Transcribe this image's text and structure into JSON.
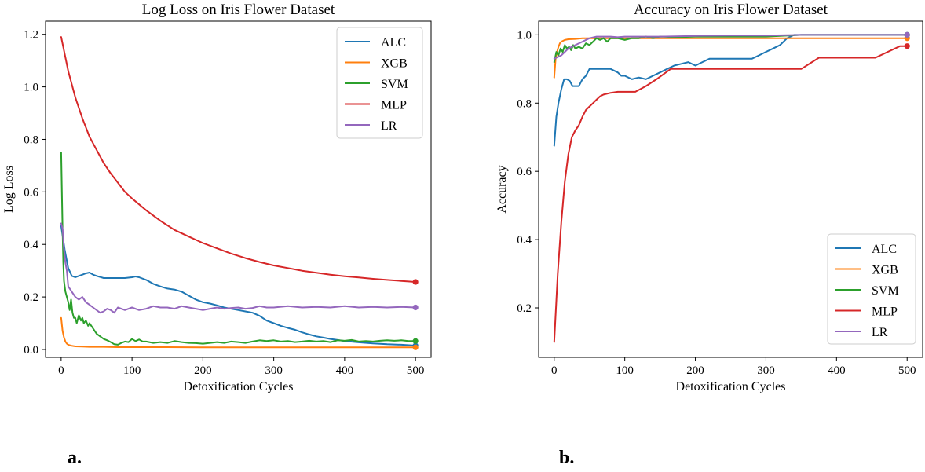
{
  "figure": {
    "panel_labels": [
      "a.",
      "b."
    ]
  },
  "chart_data": [
    {
      "type": "line",
      "title": "Log Loss on Iris Flower Dataset",
      "xlabel": "Detoxification Cycles",
      "ylabel": "Log Loss",
      "xlim": [
        -22,
        522
      ],
      "ylim": [
        -0.03,
        1.25
      ],
      "xticks": [
        0,
        100,
        200,
        300,
        400,
        500
      ],
      "xtick_labels": [
        "0",
        "100",
        "200",
        "300",
        "400",
        "500"
      ],
      "yticks": [
        0.0,
        0.2,
        0.4,
        0.6,
        0.8,
        1.0,
        1.2
      ],
      "ytick_labels": [
        "0.0",
        "0.2",
        "0.4",
        "0.6",
        "0.8",
        "1.0",
        "1.2"
      ],
      "grid": false,
      "legend_position": "top-right",
      "series": [
        {
          "name": "ALC",
          "color": "#1f77b4",
          "x": [
            0,
            5,
            10,
            15,
            20,
            25,
            30,
            35,
            40,
            45,
            50,
            60,
            70,
            80,
            90,
            100,
            105,
            110,
            120,
            130,
            140,
            150,
            160,
            170,
            180,
            190,
            200,
            210,
            220,
            230,
            240,
            250,
            260,
            270,
            280,
            290,
            300,
            310,
            320,
            330,
            340,
            350,
            360,
            370,
            380,
            390,
            400,
            420,
            440,
            460,
            480,
            500
          ],
          "y": [
            0.47,
            0.38,
            0.31,
            0.28,
            0.275,
            0.28,
            0.285,
            0.29,
            0.293,
            0.285,
            0.28,
            0.272,
            0.272,
            0.272,
            0.272,
            0.275,
            0.278,
            0.275,
            0.265,
            0.25,
            0.24,
            0.232,
            0.228,
            0.22,
            0.205,
            0.19,
            0.18,
            0.175,
            0.168,
            0.16,
            0.155,
            0.15,
            0.145,
            0.14,
            0.128,
            0.11,
            0.1,
            0.09,
            0.082,
            0.075,
            0.065,
            0.057,
            0.05,
            0.045,
            0.04,
            0.036,
            0.032,
            0.027,
            0.023,
            0.02,
            0.018,
            0.015
          ]
        },
        {
          "name": "XGB",
          "color": "#ff7f0e",
          "x": [
            0,
            2,
            4,
            6,
            8,
            10,
            15,
            20,
            30,
            40,
            60,
            80,
            100,
            150,
            200,
            300,
            400,
            500
          ],
          "y": [
            0.12,
            0.07,
            0.045,
            0.03,
            0.022,
            0.018,
            0.014,
            0.012,
            0.011,
            0.01,
            0.01,
            0.009,
            0.009,
            0.009,
            0.008,
            0.008,
            0.008,
            0.008
          ]
        },
        {
          "name": "SVM",
          "color": "#2ca02c",
          "x": [
            0,
            1,
            2,
            3,
            4,
            6,
            8,
            10,
            12,
            14,
            16,
            18,
            20,
            22,
            25,
            28,
            30,
            32,
            35,
            38,
            40,
            45,
            50,
            55,
            60,
            65,
            70,
            75,
            80,
            85,
            90,
            95,
            100,
            105,
            110,
            115,
            120,
            130,
            140,
            150,
            160,
            170,
            180,
            190,
            200,
            210,
            220,
            230,
            240,
            250,
            260,
            270,
            280,
            290,
            300,
            310,
            320,
            330,
            340,
            350,
            360,
            370,
            380,
            390,
            400,
            410,
            420,
            430,
            440,
            450,
            460,
            470,
            480,
            490,
            500
          ],
          "y": [
            0.75,
            0.6,
            0.45,
            0.33,
            0.26,
            0.22,
            0.2,
            0.18,
            0.15,
            0.19,
            0.14,
            0.12,
            0.12,
            0.1,
            0.13,
            0.11,
            0.12,
            0.1,
            0.11,
            0.09,
            0.1,
            0.08,
            0.06,
            0.05,
            0.04,
            0.035,
            0.028,
            0.02,
            0.018,
            0.025,
            0.03,
            0.028,
            0.04,
            0.032,
            0.038,
            0.03,
            0.03,
            0.025,
            0.028,
            0.025,
            0.032,
            0.028,
            0.025,
            0.024,
            0.022,
            0.025,
            0.028,
            0.025,
            0.03,
            0.028,
            0.025,
            0.03,
            0.035,
            0.032,
            0.035,
            0.03,
            0.032,
            0.028,
            0.03,
            0.033,
            0.03,
            0.032,
            0.028,
            0.035,
            0.033,
            0.036,
            0.03,
            0.032,
            0.03,
            0.033,
            0.035,
            0.033,
            0.035,
            0.032,
            0.032
          ]
        },
        {
          "name": "MLP",
          "color": "#d62728",
          "x": [
            0,
            10,
            20,
            30,
            40,
            50,
            60,
            70,
            80,
            90,
            100,
            120,
            140,
            160,
            180,
            200,
            220,
            240,
            260,
            280,
            300,
            320,
            340,
            360,
            380,
            400,
            420,
            440,
            460,
            480,
            500
          ],
          "y": [
            1.19,
            1.06,
            0.96,
            0.88,
            0.81,
            0.76,
            0.71,
            0.67,
            0.635,
            0.6,
            0.575,
            0.53,
            0.49,
            0.455,
            0.43,
            0.405,
            0.385,
            0.365,
            0.348,
            0.333,
            0.32,
            0.31,
            0.3,
            0.292,
            0.285,
            0.279,
            0.274,
            0.269,
            0.265,
            0.261,
            0.257
          ]
        },
        {
          "name": "LR",
          "color": "#9467bd",
          "x": [
            0,
            2,
            4,
            6,
            8,
            10,
            15,
            20,
            25,
            30,
            35,
            40,
            45,
            50,
            55,
            60,
            65,
            70,
            75,
            80,
            90,
            100,
            110,
            120,
            130,
            140,
            150,
            160,
            170,
            180,
            190,
            200,
            210,
            220,
            230,
            240,
            250,
            260,
            270,
            280,
            290,
            300,
            320,
            340,
            360,
            380,
            400,
            420,
            440,
            460,
            480,
            500
          ],
          "y": [
            0.48,
            0.46,
            0.38,
            0.33,
            0.3,
            0.24,
            0.22,
            0.2,
            0.19,
            0.2,
            0.18,
            0.17,
            0.16,
            0.15,
            0.14,
            0.145,
            0.155,
            0.15,
            0.14,
            0.16,
            0.15,
            0.16,
            0.15,
            0.155,
            0.165,
            0.16,
            0.16,
            0.155,
            0.165,
            0.16,
            0.155,
            0.15,
            0.155,
            0.16,
            0.155,
            0.158,
            0.16,
            0.155,
            0.158,
            0.165,
            0.16,
            0.16,
            0.165,
            0.16,
            0.162,
            0.16,
            0.165,
            0.16,
            0.162,
            0.16,
            0.162,
            0.16
          ]
        }
      ]
    },
    {
      "type": "line",
      "title": "Accuracy on Iris Flower Dataset",
      "xlabel": "Detoxification Cycles",
      "ylabel": "Accuracy",
      "xlim": [
        -22,
        522
      ],
      "ylim": [
        0.055,
        1.04
      ],
      "xticks": [
        0,
        100,
        200,
        300,
        400,
        500
      ],
      "xtick_labels": [
        "0",
        "100",
        "200",
        "300",
        "400",
        "500"
      ],
      "yticks": [
        0.2,
        0.4,
        0.6,
        0.8,
        1.0
      ],
      "ytick_labels": [
        "0.2",
        "0.4",
        "0.6",
        "0.8",
        "1.0"
      ],
      "grid": false,
      "legend_position": "bottom-right",
      "series": [
        {
          "name": "ALC",
          "color": "#1f77b4",
          "x": [
            0,
            3,
            6,
            10,
            14,
            18,
            22,
            26,
            30,
            35,
            40,
            45,
            50,
            55,
            60,
            70,
            80,
            90,
            95,
            100,
            110,
            120,
            130,
            140,
            150,
            160,
            170,
            180,
            190,
            200,
            210,
            220,
            230,
            240,
            250,
            260,
            270,
            280,
            290,
            300,
            310,
            320,
            330,
            340,
            360,
            400,
            450,
            500
          ],
          "y": [
            0.675,
            0.76,
            0.8,
            0.84,
            0.87,
            0.87,
            0.865,
            0.85,
            0.85,
            0.85,
            0.87,
            0.88,
            0.9,
            0.9,
            0.9,
            0.9,
            0.9,
            0.89,
            0.88,
            0.88,
            0.87,
            0.875,
            0.87,
            0.88,
            0.89,
            0.9,
            0.91,
            0.915,
            0.92,
            0.91,
            0.92,
            0.93,
            0.93,
            0.93,
            0.93,
            0.93,
            0.93,
            0.93,
            0.94,
            0.95,
            0.96,
            0.97,
            0.99,
            1.0,
            1.0,
            1.0,
            1.0,
            1.0
          ]
        },
        {
          "name": "XGB",
          "color": "#ff7f0e",
          "x": [
            0,
            2,
            4,
            6,
            8,
            10,
            15,
            20,
            30,
            40,
            60,
            80,
            100,
            200,
            300,
            400,
            500
          ],
          "y": [
            0.875,
            0.93,
            0.95,
            0.965,
            0.975,
            0.98,
            0.985,
            0.987,
            0.988,
            0.99,
            0.99,
            0.99,
            0.99,
            0.99,
            0.99,
            0.99,
            0.99
          ]
        },
        {
          "name": "SVM",
          "color": "#2ca02c",
          "x": [
            0,
            3,
            6,
            9,
            12,
            15,
            18,
            21,
            24,
            27,
            30,
            35,
            40,
            45,
            50,
            55,
            60,
            65,
            70,
            75,
            80,
            90,
            100,
            110,
            120,
            130,
            140,
            150,
            175,
            200,
            250,
            300,
            350,
            400,
            450,
            500
          ],
          "y": [
            0.92,
            0.95,
            0.94,
            0.96,
            0.95,
            0.97,
            0.96,
            0.965,
            0.955,
            0.97,
            0.96,
            0.965,
            0.96,
            0.975,
            0.97,
            0.98,
            0.99,
            0.985,
            0.99,
            0.98,
            0.99,
            0.99,
            0.985,
            0.99,
            0.99,
            0.995,
            0.99,
            0.995,
            0.993,
            0.995,
            0.995,
            0.995,
            1.0,
            1.0,
            1.0,
            1.0
          ]
        },
        {
          "name": "MLP",
          "color": "#d62728",
          "x": [
            0,
            5,
            10,
            15,
            20,
            25,
            30,
            35,
            40,
            45,
            50,
            55,
            60,
            65,
            70,
            80,
            90,
            100,
            115,
            130,
            145,
            165,
            200,
            250,
            300,
            350,
            375,
            400,
            455,
            490,
            500
          ],
          "y": [
            0.1,
            0.3,
            0.45,
            0.57,
            0.65,
            0.7,
            0.72,
            0.735,
            0.76,
            0.78,
            0.79,
            0.8,
            0.81,
            0.82,
            0.825,
            0.83,
            0.833,
            0.833,
            0.833,
            0.85,
            0.87,
            0.9,
            0.9,
            0.9,
            0.9,
            0.9,
            0.933,
            0.933,
            0.933,
            0.967,
            0.967
          ]
        },
        {
          "name": "LR",
          "color": "#9467bd",
          "x": [
            0,
            5,
            10,
            15,
            20,
            25,
            30,
            40,
            50,
            60,
            70,
            80,
            90,
            100,
            120,
            150,
            200,
            250,
            300,
            350,
            400,
            450,
            500
          ],
          "y": [
            0.93,
            0.935,
            0.94,
            0.95,
            0.96,
            0.965,
            0.97,
            0.98,
            0.99,
            0.995,
            0.995,
            0.995,
            0.993,
            0.995,
            0.995,
            0.995,
            0.997,
            0.998,
            0.998,
            1.0,
            1.0,
            1.0,
            1.0
          ]
        }
      ]
    }
  ]
}
